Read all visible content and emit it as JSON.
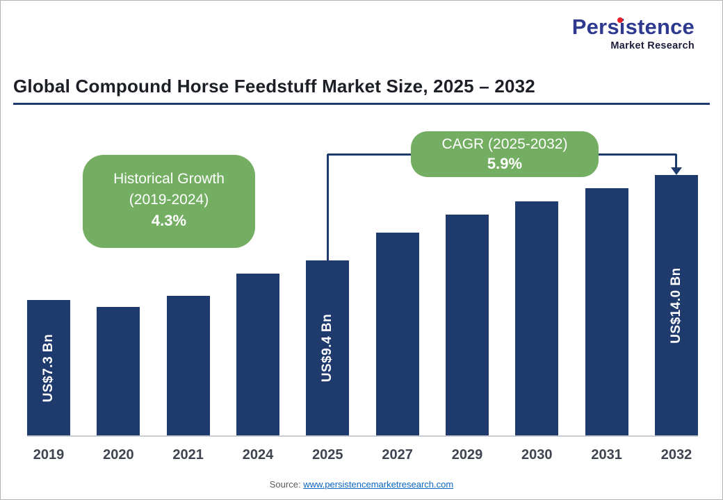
{
  "logo": {
    "brand": "Persistence",
    "tagline": "Market Research"
  },
  "title": "Global Compound Horse Feedstuff Market Size, 2025 – 2032",
  "callouts": {
    "historical": {
      "line1": "Historical Growth",
      "line2": "(2019-2024)",
      "value": "4.3%"
    },
    "cagr": {
      "line1": "CAGR (2025-2032)",
      "value": "5.9%",
      "from_year": "2025",
      "to_year": "2032"
    }
  },
  "source": {
    "prefix": "Source: ",
    "link": "www.persistencemarketresearch.com"
  },
  "colors": {
    "bar_navy": "#1f3b6e",
    "accent_green": "#74ae63",
    "logo_blue": "#2d3a8f",
    "logo_dot_red": "#e62129",
    "link_blue": "#0a66c2"
  },
  "chart_data": {
    "type": "bar",
    "title": "Global Compound Horse Feedstuff Market Size, 2025 – 2032",
    "unit": "US$ Bn",
    "categories": [
      "2019",
      "2020",
      "2021",
      "2024",
      "2025",
      "2027",
      "2029",
      "2030",
      "2031",
      "2032"
    ],
    "values": [
      7.3,
      6.9,
      7.5,
      8.7,
      9.4,
      10.9,
      11.9,
      12.6,
      13.3,
      14.0
    ],
    "labels": [
      "US$7.3 Bn",
      null,
      null,
      null,
      "US$9.4 Bn",
      null,
      null,
      null,
      null,
      "US$14.0 Bn"
    ],
    "labeled_values_only": {
      "2019": 7.3,
      "2025": 9.4,
      "2032": 14.0
    },
    "estimated_unlabeled": true,
    "xlabel": "",
    "ylabel": "",
    "ylim": [
      0,
      14.5
    ],
    "grid": false,
    "legend": "none",
    "annotations": [
      {
        "text": "Historical Growth (2019-2024) 4.3%",
        "applies_to": "2019-2024"
      },
      {
        "text": "CAGR (2025-2032) 5.9%",
        "applies_to": "2025-2032"
      }
    ]
  }
}
